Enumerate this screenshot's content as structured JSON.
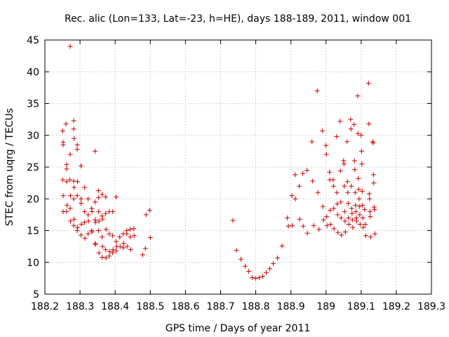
{
  "chart_data": {
    "type": "scatter",
    "title": "Rec. alic (Lon=133, Lat=-23, h=HE), days 188-189, 2011, window 001",
    "xlabel": "GPS time / Days of year 2011",
    "ylabel": "STEC from uqrg / TECUs",
    "xlim": [
      188.2,
      189.3
    ],
    "ylim": [
      5,
      45
    ],
    "x_ticks": [
      "188.2",
      "188.3",
      "188.4",
      "188.5",
      "188.6",
      "188.7",
      "188.8",
      "188.9",
      "189",
      "189.1",
      "189.2",
      "189.3"
    ],
    "y_ticks": [
      "5",
      "10",
      "15",
      "20",
      "25",
      "30",
      "35",
      "40",
      "45"
    ],
    "grid": true,
    "legend": "none",
    "marker": "+",
    "marker_color": "#cc0000",
    "series": [
      {
        "points": [
          [
            188.251,
            30.7
          ],
          [
            188.252,
            28.9
          ],
          [
            188.252,
            28.5
          ],
          [
            188.251,
            23.0
          ],
          [
            188.252,
            20.5
          ],
          [
            188.252,
            18.0
          ],
          [
            188.26,
            31.8
          ],
          [
            188.262,
            25.4
          ],
          [
            188.262,
            24.7
          ],
          [
            188.262,
            22.7
          ],
          [
            188.263,
            19.0
          ],
          [
            188.262,
            18.0
          ],
          [
            188.272,
            44.0
          ],
          [
            188.272,
            27.0
          ],
          [
            188.271,
            23.0
          ],
          [
            188.273,
            20.5
          ],
          [
            188.272,
            18.5
          ],
          [
            188.273,
            16.5
          ],
          [
            188.282,
            32.3
          ],
          [
            188.282,
            31.0
          ],
          [
            188.283,
            29.5
          ],
          [
            188.282,
            22.8
          ],
          [
            188.283,
            21.8
          ],
          [
            188.282,
            20.0
          ],
          [
            188.283,
            16.8
          ],
          [
            188.282,
            15.8
          ],
          [
            188.292,
            28.5
          ],
          [
            188.292,
            27.8
          ],
          [
            188.293,
            22.7
          ],
          [
            188.292,
            20.5
          ],
          [
            188.293,
            15.5
          ],
          [
            188.292,
            15.0
          ],
          [
            188.303,
            25.2
          ],
          [
            188.303,
            20.0
          ],
          [
            188.303,
            19.3
          ],
          [
            188.304,
            16.0
          ],
          [
            188.303,
            14.3
          ],
          [
            188.313,
            21.8
          ],
          [
            188.313,
            18.0
          ],
          [
            188.313,
            16.3
          ],
          [
            188.314,
            13.8
          ],
          [
            188.323,
            20.0
          ],
          [
            188.323,
            17.5
          ],
          [
            188.324,
            16.5
          ],
          [
            188.323,
            14.5
          ],
          [
            188.333,
            18.5
          ],
          [
            188.334,
            18.0
          ],
          [
            188.333,
            15.0
          ],
          [
            188.334,
            14.8
          ],
          [
            188.343,
            27.5
          ],
          [
            188.343,
            19.5
          ],
          [
            188.343,
            16.7
          ],
          [
            188.344,
            16.3
          ],
          [
            188.343,
            13.0
          ],
          [
            188.344,
            12.8
          ],
          [
            188.353,
            21.3
          ],
          [
            188.353,
            20.2
          ],
          [
            188.353,
            18.0
          ],
          [
            188.354,
            16.5
          ],
          [
            188.353,
            15.0
          ],
          [
            188.354,
            11.5
          ],
          [
            188.363,
            20.7
          ],
          [
            188.363,
            17.3
          ],
          [
            188.364,
            16.8
          ],
          [
            188.363,
            14.0
          ],
          [
            188.364,
            12.5
          ],
          [
            188.363,
            10.8
          ],
          [
            188.373,
            20.3
          ],
          [
            188.373,
            17.7
          ],
          [
            188.374,
            15.2
          ],
          [
            188.373,
            12.0
          ],
          [
            188.374,
            10.7
          ],
          [
            188.383,
            18.0
          ],
          [
            188.383,
            14.5
          ],
          [
            188.384,
            11.7
          ],
          [
            188.383,
            11.0
          ],
          [
            188.393,
            18.0
          ],
          [
            188.393,
            14.2
          ],
          [
            188.394,
            12.0
          ],
          [
            188.393,
            11.5
          ],
          [
            188.403,
            20.3
          ],
          [
            188.403,
            13.3
          ],
          [
            188.404,
            12.5
          ],
          [
            188.403,
            11.8
          ],
          [
            188.413,
            14.0
          ],
          [
            188.414,
            12.5
          ],
          [
            188.423,
            14.5
          ],
          [
            188.424,
            13.0
          ],
          [
            188.423,
            12.3
          ],
          [
            188.433,
            15.0
          ],
          [
            188.433,
            14.5
          ],
          [
            188.434,
            12.5
          ],
          [
            188.443,
            15.2
          ],
          [
            188.443,
            14.0
          ],
          [
            188.444,
            12.0
          ],
          [
            188.453,
            15.3
          ],
          [
            188.454,
            14.2
          ],
          [
            188.478,
            11.2
          ],
          [
            188.486,
            12.2
          ],
          [
            188.488,
            17.5
          ],
          [
            188.498,
            18.2
          ],
          [
            188.5,
            13.9
          ],
          [
            188.735,
            16.6
          ],
          [
            188.745,
            11.9
          ],
          [
            188.758,
            10.5
          ],
          [
            188.77,
            9.4
          ],
          [
            188.78,
            8.6
          ],
          [
            188.79,
            7.6
          ],
          [
            188.8,
            7.5
          ],
          [
            188.81,
            7.6
          ],
          [
            188.82,
            7.8
          ],
          [
            188.83,
            8.4
          ],
          [
            188.84,
            9.0
          ],
          [
            188.85,
            9.8
          ],
          [
            188.862,
            10.7
          ],
          [
            188.875,
            12.6
          ],
          [
            188.89,
            17.0
          ],
          [
            188.893,
            15.7
          ],
          [
            188.903,
            20.5
          ],
          [
            188.904,
            15.8
          ],
          [
            188.912,
            23.8
          ],
          [
            188.913,
            20.0
          ],
          [
            188.924,
            22.0
          ],
          [
            188.925,
            16.8
          ],
          [
            188.934,
            24.0
          ],
          [
            188.935,
            15.7
          ],
          [
            188.946,
            24.5
          ],
          [
            188.947,
            14.6
          ],
          [
            188.96,
            29.0
          ],
          [
            188.962,
            22.8
          ],
          [
            188.965,
            15.8
          ],
          [
            188.975,
            37.0
          ],
          [
            188.977,
            21.0
          ],
          [
            188.98,
            15.2
          ],
          [
            188.99,
            30.7
          ],
          [
            188.991,
            18.8
          ],
          [
            188.993,
            16.7
          ],
          [
            189.0,
            28.4
          ],
          [
            189.001,
            27.0
          ],
          [
            189.002,
            17.2
          ],
          [
            189.003,
            15.8
          ],
          [
            189.01,
            24.2
          ],
          [
            189.011,
            23.0
          ],
          [
            189.012,
            18.2
          ],
          [
            189.013,
            16.0
          ],
          [
            189.02,
            23.0
          ],
          [
            189.021,
            22.0
          ],
          [
            189.022,
            18.5
          ],
          [
            189.023,
            15.3
          ],
          [
            189.03,
            29.8
          ],
          [
            189.031,
            21.0
          ],
          [
            189.032,
            19.2
          ],
          [
            189.033,
            17.5
          ],
          [
            189.034,
            14.7
          ],
          [
            189.04,
            32.2
          ],
          [
            189.041,
            24.4
          ],
          [
            189.042,
            19.5
          ],
          [
            189.043,
            17.0
          ],
          [
            189.044,
            14.3
          ],
          [
            189.05,
            26.0
          ],
          [
            189.051,
            25.5
          ],
          [
            189.052,
            22.0
          ],
          [
            189.053,
            18.0
          ],
          [
            189.054,
            16.5
          ],
          [
            189.055,
            14.8
          ],
          [
            189.06,
            29.0
          ],
          [
            189.061,
            22.7
          ],
          [
            189.062,
            21.0
          ],
          [
            189.063,
            19.3
          ],
          [
            189.064,
            17.0
          ],
          [
            189.065,
            16.0
          ],
          [
            189.07,
            32.5
          ],
          [
            189.071,
            31.0
          ],
          [
            189.072,
            22.0
          ],
          [
            189.073,
            18.5
          ],
          [
            189.074,
            17.7
          ],
          [
            189.075,
            16.7
          ],
          [
            189.076,
            15.5
          ],
          [
            189.08,
            31.7
          ],
          [
            189.081,
            26.0
          ],
          [
            189.082,
            24.6
          ],
          [
            189.083,
            21.0
          ],
          [
            189.084,
            19.0
          ],
          [
            189.085,
            18.0
          ],
          [
            189.086,
            17.0
          ],
          [
            189.087,
            16.5
          ],
          [
            189.09,
            36.2
          ],
          [
            189.091,
            30.3
          ],
          [
            189.092,
            23.2
          ],
          [
            189.093,
            21.5
          ],
          [
            189.094,
            20.0
          ],
          [
            189.095,
            18.8
          ],
          [
            189.096,
            17.5
          ],
          [
            189.097,
            16.0
          ],
          [
            189.1,
            30.0
          ],
          [
            189.101,
            27.5
          ],
          [
            189.102,
            25.5
          ],
          [
            189.103,
            21.2
          ],
          [
            189.104,
            19.0
          ],
          [
            189.105,
            17.0
          ],
          [
            189.106,
            15.5
          ],
          [
            189.11,
            18.3
          ],
          [
            189.112,
            16.0
          ],
          [
            189.113,
            14.2
          ],
          [
            189.121,
            38.2
          ],
          [
            189.122,
            31.8
          ],
          [
            189.123,
            20.8
          ],
          [
            189.124,
            20.0
          ],
          [
            189.125,
            18.0
          ],
          [
            189.126,
            17.2
          ],
          [
            189.127,
            14.0
          ],
          [
            189.133,
            29.0
          ],
          [
            189.134,
            28.8
          ],
          [
            189.135,
            23.8
          ],
          [
            189.136,
            22.5
          ],
          [
            189.137,
            18.7
          ],
          [
            189.138,
            18.3
          ],
          [
            189.139,
            14.5
          ]
        ]
      }
    ]
  }
}
